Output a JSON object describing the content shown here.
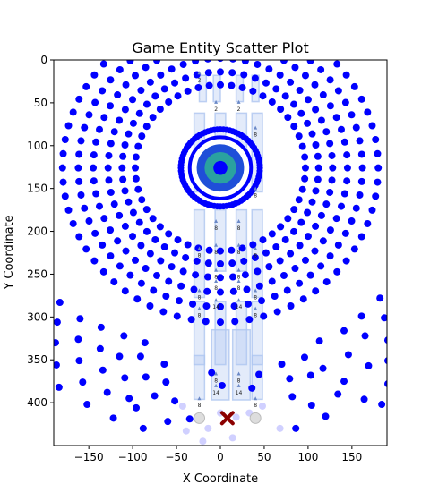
{
  "chart_data": {
    "type": "scatter",
    "title": "Game Entity Scatter Plot",
    "xlabel": "X Coordinate",
    "ylabel": "Y Coordinate",
    "xlim": [
      -190,
      190
    ],
    "ylim": [
      450,
      0
    ],
    "x_ticks": [
      -150,
      -100,
      -50,
      0,
      50,
      100,
      150
    ],
    "y_ticks": [
      0,
      50,
      100,
      150,
      200,
      250,
      300,
      350,
      400
    ],
    "grid": false,
    "colors": {
      "entity": "#0000ff",
      "player": "#8b0000",
      "ghost": "#aaaaff",
      "neutral": "#dddddd",
      "structure": "#aec6f0",
      "marker": "#6a88c6",
      "center_blue": "#1f4fd8",
      "center_teal": "#2aa2a0"
    },
    "rings": [
      {
        "cx": 0,
        "cy": 126,
        "r": 97,
        "count": 48
      },
      {
        "cx": 0,
        "cy": 126,
        "r": 112,
        "count": 52
      },
      {
        "cx": 0,
        "cy": 126,
        "r": 128,
        "count": 56
      },
      {
        "cx": 0,
        "cy": 126,
        "r": 145,
        "count": 60
      },
      {
        "cx": 0,
        "cy": 126,
        "r": 162,
        "count": 64
      },
      {
        "cx": 0,
        "cy": 126,
        "r": 180,
        "count": 68
      }
    ],
    "center_target": {
      "x": 0,
      "y": 126,
      "outer_r": 45,
      "inner_r": 18,
      "core_r": 10
    },
    "lower_arc": [
      [
        -183,
        283
      ],
      [
        -186,
        306
      ],
      [
        -188,
        330
      ],
      [
        -187,
        356
      ],
      [
        -184,
        382
      ],
      [
        -160,
        302
      ],
      [
        -162,
        326
      ],
      [
        -161,
        351
      ],
      [
        -157,
        376
      ],
      [
        -152,
        402
      ],
      [
        -136,
        312
      ],
      [
        -137,
        337
      ],
      [
        -134,
        362
      ],
      [
        -129,
        388
      ],
      [
        -122,
        418
      ],
      [
        -110,
        322
      ],
      [
        -115,
        346
      ],
      [
        -109,
        371
      ],
      [
        -104,
        395
      ],
      [
        -96,
        406
      ],
      [
        -86,
        330
      ],
      [
        -91,
        346
      ],
      [
        -85,
        370
      ],
      [
        -75,
        392
      ],
      [
        -60,
        422
      ],
      [
        -64,
        355
      ],
      [
        -62,
        376
      ],
      [
        -52,
        398
      ],
      [
        -35,
        419
      ],
      [
        -10,
        365
      ],
      [
        2,
        380
      ],
      [
        36,
        383
      ],
      [
        44,
        367
      ],
      [
        70,
        355
      ],
      [
        79,
        372
      ],
      [
        82,
        393
      ],
      [
        96,
        347
      ],
      [
        103,
        368
      ],
      [
        104,
        403
      ],
      [
        120,
        416
      ],
      [
        113,
        328
      ],
      [
        117,
        360
      ],
      [
        134,
        390
      ],
      [
        141,
        375
      ],
      [
        141,
        316
      ],
      [
        146,
        344
      ],
      [
        164,
        396
      ],
      [
        169,
        357
      ],
      [
        165,
        322
      ],
      [
        161,
        299
      ],
      [
        191,
        327
      ],
      [
        191,
        351
      ],
      [
        191,
        378
      ],
      [
        184,
        402
      ],
      [
        182,
        278
      ],
      [
        187,
        301
      ],
      [
        -88,
        430
      ],
      [
        86,
        430
      ]
    ],
    "ghost_points": [
      [
        -43,
        404
      ],
      [
        -39,
        433
      ],
      [
        -20,
        445
      ],
      [
        -14,
        430
      ],
      [
        0,
        412
      ],
      [
        14,
        441
      ],
      [
        18,
        417
      ],
      [
        33,
        412
      ],
      [
        48,
        404
      ],
      [
        68,
        430
      ]
    ],
    "neutral_points": [
      [
        -24,
        418
      ],
      [
        40,
        418
      ]
    ],
    "player": {
      "x": 8,
      "y": 418,
      "label": ""
    },
    "structures": [
      {
        "x": -24,
        "y": 18,
        "w": 8,
        "h": 30
      },
      {
        "x": -8,
        "y": 18,
        "w": 8,
        "h": 30
      },
      {
        "x": 18,
        "y": 18,
        "w": 8,
        "h": 30
      },
      {
        "x": 36,
        "y": 18,
        "w": 8,
        "h": 30
      },
      {
        "x": -30,
        "y": 62,
        "w": 12,
        "h": 90
      },
      {
        "x": -6,
        "y": 62,
        "w": 12,
        "h": 55
      },
      {
        "x": 18,
        "y": 62,
        "w": 12,
        "h": 55
      },
      {
        "x": 36,
        "y": 62,
        "w": 12,
        "h": 90
      },
      {
        "x": -30,
        "y": 175,
        "w": 12,
        "h": 100
      },
      {
        "x": -6,
        "y": 175,
        "w": 12,
        "h": 70
      },
      {
        "x": 18,
        "y": 175,
        "w": 12,
        "h": 70
      },
      {
        "x": 36,
        "y": 175,
        "w": 12,
        "h": 100
      },
      {
        "x": -30,
        "y": 282,
        "w": 12,
        "h": 72
      },
      {
        "x": -6,
        "y": 282,
        "w": 12,
        "h": 72
      },
      {
        "x": 18,
        "y": 282,
        "w": 12,
        "h": 72
      },
      {
        "x": 36,
        "y": 282,
        "w": 12,
        "h": 72
      },
      {
        "x": -30,
        "y": 345,
        "w": 12,
        "h": 50
      },
      {
        "x": -10,
        "y": 315,
        "w": 20,
        "h": 80
      },
      {
        "x": 14,
        "y": 315,
        "w": 20,
        "h": 80
      },
      {
        "x": 36,
        "y": 345,
        "w": 12,
        "h": 50
      }
    ],
    "markers": [
      {
        "x": -24,
        "y": 17,
        "label": "2"
      },
      {
        "x": -5,
        "y": 51,
        "label": "2"
      },
      {
        "x": 21,
        "y": 51,
        "label": "2"
      },
      {
        "x": 40,
        "y": 81,
        "label": "8"
      },
      {
        "x": 40,
        "y": 152,
        "label": "8"
      },
      {
        "x": -5,
        "y": 190,
        "label": "8"
      },
      {
        "x": 21,
        "y": 190,
        "label": "8"
      },
      {
        "x": -5,
        "y": 218,
        "label": "8"
      },
      {
        "x": 21,
        "y": 218,
        "label": "8"
      },
      {
        "x": -24,
        "y": 222,
        "label": "8"
      },
      {
        "x": 40,
        "y": 222,
        "label": "8"
      },
      {
        "x": -5,
        "y": 247,
        "label": "8"
      },
      {
        "x": 21,
        "y": 247,
        "label": "8"
      },
      {
        "x": -24,
        "y": 271,
        "label": "8"
      },
      {
        "x": 40,
        "y": 271,
        "label": "8"
      },
      {
        "x": -5,
        "y": 260,
        "label": "8"
      },
      {
        "x": 21,
        "y": 260,
        "label": "8"
      },
      {
        "x": -5,
        "y": 282,
        "label": "14"
      },
      {
        "x": 21,
        "y": 282,
        "label": "14"
      },
      {
        "x": -24,
        "y": 292,
        "label": "8"
      },
      {
        "x": 40,
        "y": 292,
        "label": "8"
      },
      {
        "x": -5,
        "y": 368,
        "label": "8"
      },
      {
        "x": 21,
        "y": 368,
        "label": "8"
      },
      {
        "x": -5,
        "y": 382,
        "label": "14"
      },
      {
        "x": 21,
        "y": 382,
        "label": "14"
      },
      {
        "x": -24,
        "y": 397,
        "label": "8"
      },
      {
        "x": 40,
        "y": 397,
        "label": "8"
      }
    ]
  }
}
